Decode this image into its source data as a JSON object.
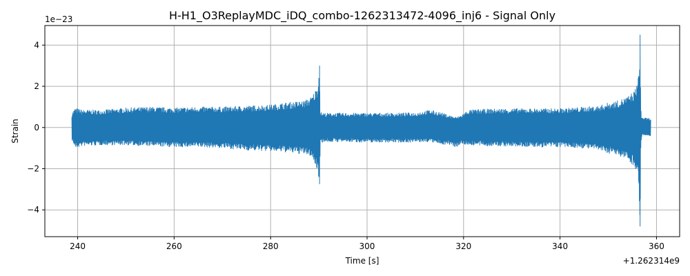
{
  "chart_data": {
    "type": "line",
    "title": "H-H1_O3ReplayMDC_iDQ_combo-1262313472-4096_inj6 - Signal Only",
    "xlabel": "Time [s]",
    "ylabel": "Strain",
    "x_offset_label": "+1.262314e9",
    "y_scale_label": "1e−23",
    "xlim": [
      233.2,
      364.8
    ],
    "ylim": [
      -5.3,
      4.95
    ],
    "x_ticks": [
      240,
      260,
      280,
      300,
      320,
      340,
      360
    ],
    "x_tick_labels": [
      "240",
      "260",
      "280",
      "300",
      "320",
      "340",
      "360"
    ],
    "y_ticks": [
      -4,
      -2,
      0,
      2,
      4
    ],
    "y_tick_labels": [
      "−4",
      "−2",
      "0",
      "2",
      "4"
    ],
    "grid": true,
    "series": [
      {
        "color": "#1f77b4",
        "envelope": {
          "x": [
            238.8,
            239.5,
            241,
            245,
            250,
            255,
            260,
            265,
            270,
            275,
            280,
            283,
            285,
            287,
            288.5,
            289.5,
            290.0,
            290.15,
            290.3,
            291,
            295,
            300,
            305,
            310,
            313,
            315,
            317,
            318.5,
            319.5,
            321,
            325,
            330,
            335,
            340,
            345,
            348,
            350,
            352,
            354,
            355.5,
            356.3,
            356.6,
            356.75,
            356.9,
            357.1,
            358,
            358.8
          ],
          "upper": [
            0.7,
            0.95,
            0.85,
            0.85,
            0.95,
            1.0,
            0.95,
            1.0,
            1.0,
            1.05,
            1.1,
            1.2,
            1.25,
            1.3,
            1.5,
            1.9,
            2.4,
            3.0,
            0.75,
            0.7,
            0.7,
            0.7,
            0.7,
            0.72,
            0.85,
            0.75,
            0.6,
            0.5,
            0.6,
            0.85,
            0.9,
            0.92,
            0.92,
            0.92,
            1.0,
            1.05,
            1.2,
            1.3,
            1.5,
            1.8,
            2.5,
            4.5,
            1.0,
            0.55,
            0.5,
            0.45,
            0.45
          ],
          "lower": [
            -0.6,
            -1.0,
            -0.9,
            -0.85,
            -0.85,
            -0.9,
            -0.95,
            -0.95,
            -1.0,
            -1.1,
            -1.15,
            -1.2,
            -1.25,
            -1.3,
            -1.4,
            -2.0,
            -2.4,
            -2.75,
            -0.75,
            -0.7,
            -0.7,
            -0.72,
            -0.72,
            -0.72,
            -0.7,
            -0.8,
            -0.85,
            -0.95,
            -0.8,
            -0.85,
            -0.9,
            -0.92,
            -0.95,
            -0.95,
            -1.0,
            -1.1,
            -1.25,
            -1.35,
            -1.55,
            -1.9,
            -2.6,
            -4.8,
            -1.0,
            -0.45,
            -0.4,
            -0.4,
            -0.4
          ]
        }
      }
    ]
  }
}
